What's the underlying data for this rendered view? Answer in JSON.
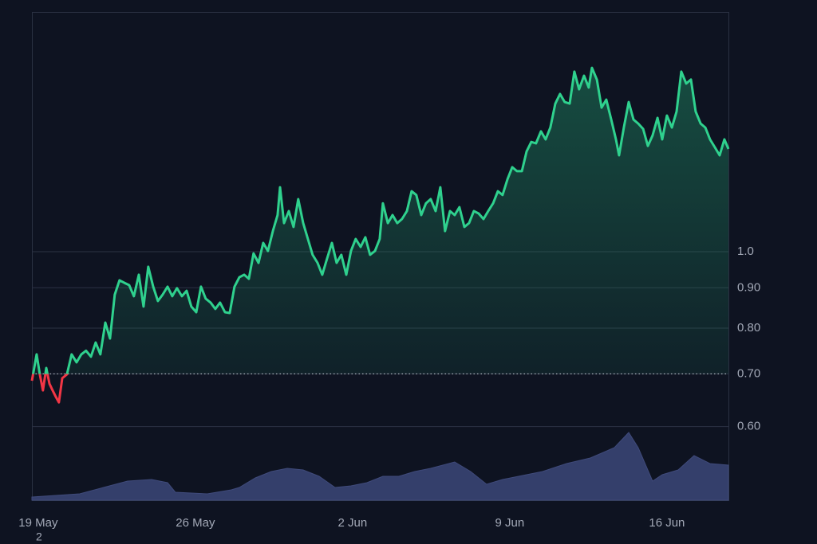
{
  "chart_data": {
    "type": "area",
    "log_scale": true,
    "baseline": 0.7,
    "colors": {
      "up": "#2fd18e",
      "down": "#f23645",
      "fill": "#1f8a63"
    },
    "xlim": [
      -0.28,
      30.74
    ],
    "xticks": [
      {
        "value": 0,
        "label": "19 May"
      },
      {
        "value": 7,
        "label": "26 May"
      },
      {
        "value": 14,
        "label": "2 Jun"
      },
      {
        "value": 21,
        "label": "9 Jun"
      },
      {
        "value": 28,
        "label": "16 Jun"
      }
    ],
    "ylim": [
      0.484,
      2.014
    ],
    "yticks": [
      {
        "value": 0.6,
        "label": "0.60"
      },
      {
        "value": 0.7,
        "label": "0.70"
      },
      {
        "value": 0.8,
        "label": "0.80"
      },
      {
        "value": 0.9,
        "label": "0.90"
      },
      {
        "value": 1,
        "label": "1.0"
      }
    ],
    "grid": true,
    "x": [
      -0.28,
      -0.07,
      0.07,
      0.21,
      0.36,
      0.5,
      0.64,
      0.78,
      0.92,
      1.07,
      1.28,
      1.49,
      1.71,
      1.92,
      2.13,
      2.35,
      2.56,
      2.77,
      2.99,
      3.2,
      3.41,
      3.62,
      3.84,
      4.05,
      4.26,
      4.48,
      4.69,
      4.9,
      5.12,
      5.33,
      5.54,
      5.76,
      5.97,
      6.18,
      6.4,
      6.61,
      6.82,
      7.04,
      7.25,
      7.46,
      7.68,
      7.89,
      8.1,
      8.32,
      8.53,
      8.74,
      8.96,
      9.17,
      9.38,
      9.59,
      9.81,
      10.02,
      10.23,
      10.45,
      10.66,
      10.77,
      10.95,
      11.16,
      11.37,
      11.58,
      11.8,
      12.01,
      12.22,
      12.44,
      12.65,
      12.86,
      13.08,
      13.29,
      13.5,
      13.72,
      13.93,
      14.14,
      14.36,
      14.57,
      14.78,
      15.0,
      15.21,
      15.35,
      15.57,
      15.78,
      15.99,
      16.2,
      16.42,
      16.63,
      16.84,
      17.06,
      17.27,
      17.48,
      17.7,
      17.91,
      18.12,
      18.34,
      18.55,
      18.76,
      18.98,
      19.19,
      19.4,
      19.62,
      19.83,
      20.04,
      20.26,
      20.47,
      20.68,
      20.9,
      21.11,
      21.32,
      21.54,
      21.75,
      21.96,
      22.17,
      22.39,
      22.6,
      22.81,
      23.03,
      23.24,
      23.45,
      23.67,
      23.88,
      24.09,
      24.31,
      24.52,
      24.66,
      24.88,
      25.09,
      25.3,
      25.52,
      25.73,
      25.87,
      26.08,
      26.3,
      26.51,
      26.72,
      26.94,
      27.15,
      27.36,
      27.58,
      27.79,
      28.0,
      28.22,
      28.43,
      28.64,
      28.86,
      29.07,
      29.28,
      29.5,
      29.71,
      29.92,
      30.14,
      30.35,
      30.56,
      30.74
    ],
    "values": [
      0.686,
      0.741,
      0.699,
      0.667,
      0.712,
      0.68,
      0.667,
      0.655,
      0.644,
      0.691,
      0.699,
      0.741,
      0.724,
      0.741,
      0.749,
      0.736,
      0.767,
      0.741,
      0.813,
      0.776,
      0.882,
      0.92,
      0.913,
      0.907,
      0.878,
      0.935,
      0.852,
      0.957,
      0.903,
      0.866,
      0.882,
      0.903,
      0.878,
      0.899,
      0.878,
      0.892,
      0.852,
      0.838,
      0.903,
      0.872,
      0.862,
      0.846,
      0.862,
      0.838,
      0.836,
      0.903,
      0.928,
      0.935,
      0.924,
      0.995,
      0.968,
      1.026,
      1.002,
      1.062,
      1.113,
      1.207,
      1.087,
      1.126,
      1.075,
      1.166,
      1.087,
      1.038,
      0.991,
      0.968,
      0.935,
      0.979,
      1.026,
      0.968,
      0.991,
      0.935,
      1.002,
      1.038,
      1.014,
      1.043,
      0.991,
      1.002,
      1.038,
      1.152,
      1.087,
      1.113,
      1.087,
      1.1,
      1.126,
      1.193,
      1.18,
      1.113,
      1.152,
      1.166,
      1.126,
      1.207,
      1.062,
      1.126,
      1.113,
      1.139,
      1.075,
      1.087,
      1.126,
      1.118,
      1.1,
      1.126,
      1.152,
      1.193,
      1.18,
      1.236,
      1.28,
      1.265,
      1.265,
      1.34,
      1.378,
      1.372,
      1.421,
      1.388,
      1.437,
      1.541,
      1.585,
      1.548,
      1.541,
      1.692,
      1.607,
      1.672,
      1.615,
      1.711,
      1.653,
      1.523,
      1.559,
      1.471,
      1.388,
      1.325,
      1.437,
      1.548,
      1.471,
      1.454,
      1.431,
      1.362,
      1.404,
      1.478,
      1.388,
      1.488,
      1.437,
      1.506,
      1.692,
      1.634,
      1.653,
      1.506,
      1.454,
      1.437,
      1.388,
      1.356,
      1.325,
      1.388,
      1.35
    ],
    "volume": {
      "type": "area",
      "color": "#343f6b",
      "ylim": [
        0,
        100
      ],
      "x": [
        -0.28,
        1.85,
        2.91,
        3.98,
        5.05,
        5.76,
        6.11,
        7.53,
        8.6,
        8.96,
        9.67,
        10.38,
        11.09,
        11.8,
        12.51,
        13.22,
        13.93,
        14.64,
        15.35,
        16.06,
        16.77,
        17.48,
        18.55,
        19.26,
        19.97,
        20.68,
        21.39,
        22.46,
        23.53,
        24.59,
        25.66,
        26.3,
        26.72,
        27.36,
        27.79,
        28.5,
        29.21,
        29.92,
        30.74
      ],
      "values": [
        4,
        8,
        16,
        24,
        26,
        22,
        10,
        8,
        13,
        16,
        28,
        36,
        40,
        38,
        30,
        16,
        18,
        22,
        30,
        30,
        36,
        40,
        48,
        36,
        20,
        26,
        30,
        36,
        46,
        53,
        66,
        85,
        66,
        24,
        32,
        38,
        56,
        46,
        44
      ]
    },
    "annotation": "2"
  }
}
